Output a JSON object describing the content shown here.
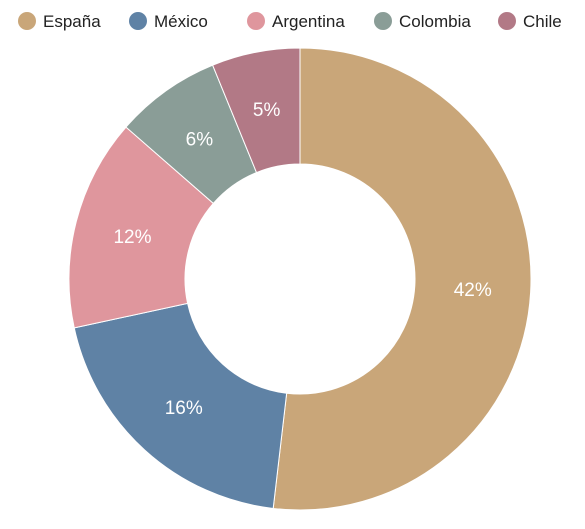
{
  "chart_data": {
    "type": "pie",
    "donut": true,
    "legend_position": "top",
    "categories": [
      "España",
      "México",
      "Argentina",
      "Colombia",
      "Chile"
    ],
    "values": [
      42,
      16,
      12,
      6,
      5
    ],
    "labels": [
      "42%",
      "16%",
      "12%",
      "6%",
      "5%"
    ],
    "colors": [
      "#c9a679",
      "#5f82a5",
      "#df969d",
      "#8a9d97",
      "#b27986"
    ]
  }
}
